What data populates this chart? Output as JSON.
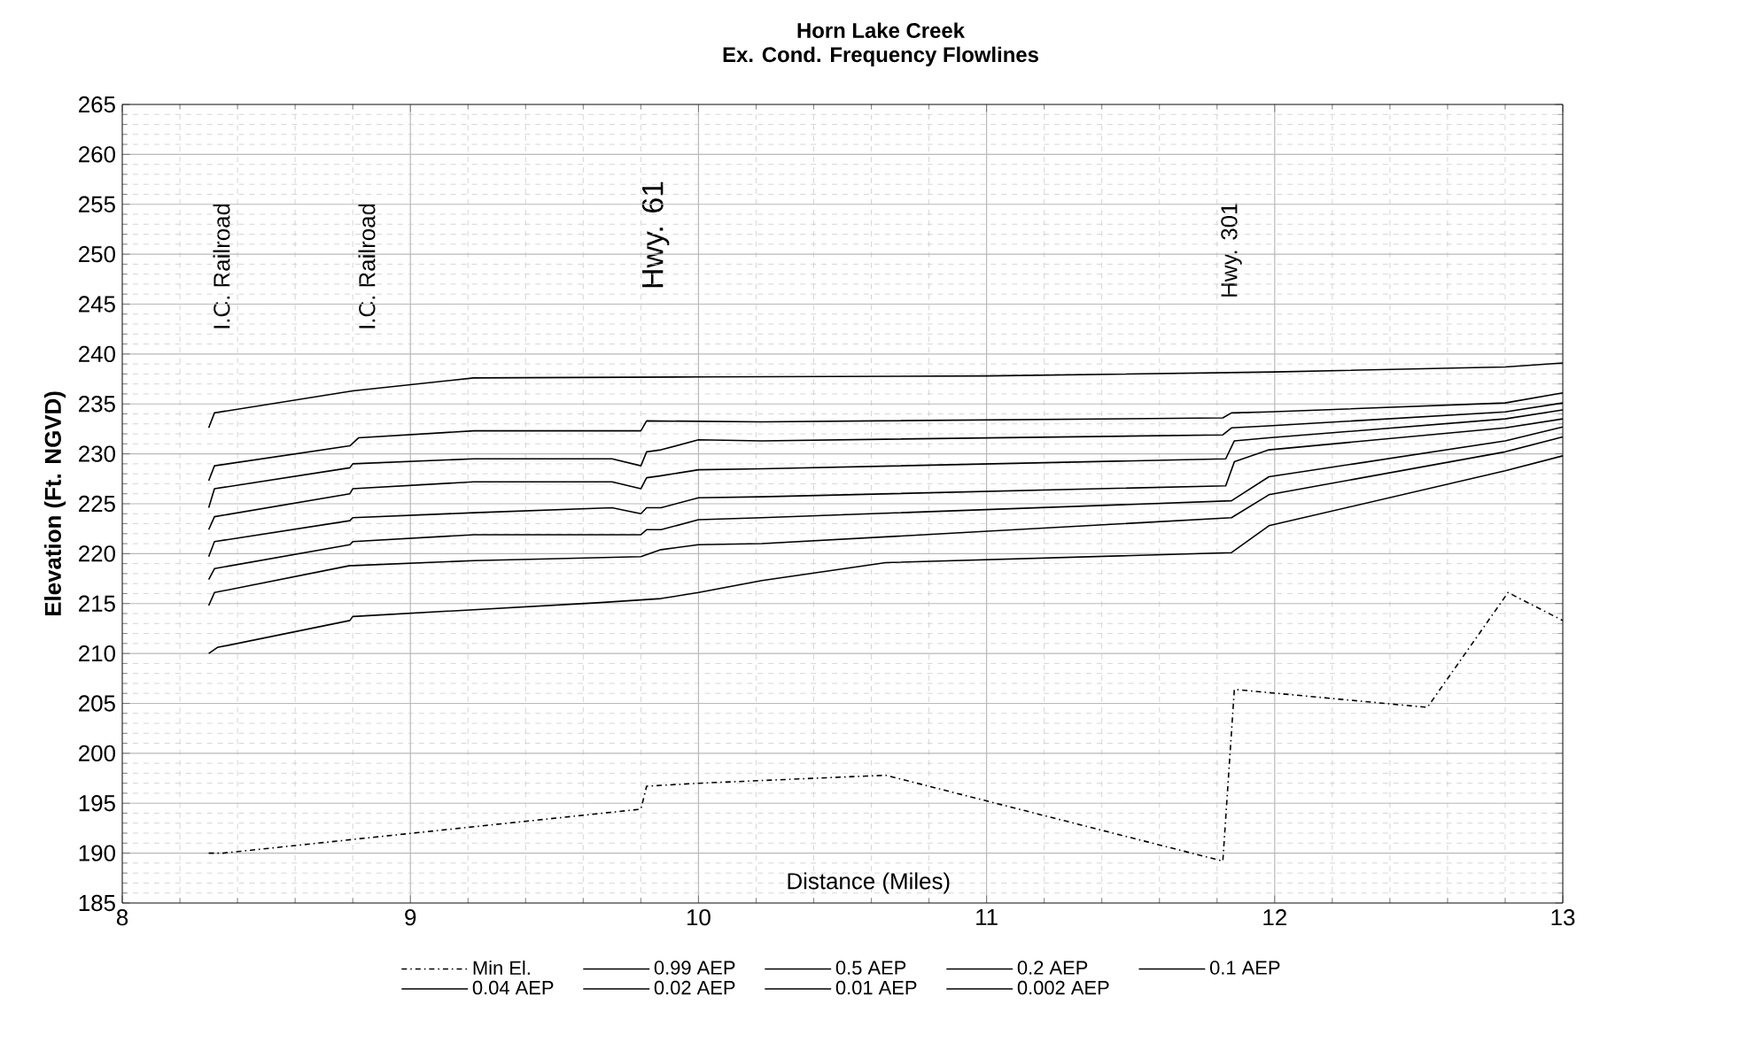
{
  "chart_data": {
    "type": "line",
    "title": "Horn Lake Creek",
    "subtitle": "Ex. Cond. Frequency Flowlines",
    "xlabel": "Distance (Miles)",
    "ylabel": "Elevation (Ft. NGVD)",
    "xlim": [
      8,
      13
    ],
    "xticks": [
      8,
      9,
      10,
      11,
      12,
      13
    ],
    "ylim": [
      185,
      265
    ],
    "yticks": [
      185,
      190,
      195,
      200,
      205,
      210,
      215,
      220,
      225,
      230,
      235,
      240,
      245,
      250,
      255,
      260,
      265
    ],
    "grid": true,
    "legend": "bottom",
    "marker": "none",
    "annotations": [
      "I.C. Railroad",
      "I.C. Railroad",
      "Hwy. 61",
      "Hwy. 301"
    ],
    "series": [
      {
        "name": "Min El.",
        "color": "#000000",
        "line_style": "dashdot",
        "x": [
          8.3,
          8.35,
          9.8,
          9.82,
          10.0,
          10.65,
          11.82,
          11.86,
          12.53,
          12.81,
          13.0
        ],
        "values": [
          190.0,
          190.0,
          194.4,
          196.7,
          197.0,
          197.8,
          189.2,
          206.4,
          204.6,
          216.1,
          213.3
        ]
      },
      {
        "name": "0.99 AEP",
        "color": "#000000",
        "line_style": "solid",
        "x": [
          8.3,
          8.33,
          8.79,
          8.8,
          9.66,
          9.87,
          10.0,
          10.22,
          10.65,
          11.85,
          11.98,
          12.8,
          13.0
        ],
        "values": [
          210.0,
          210.6,
          213.3,
          213.7,
          215.1,
          215.5,
          216.1,
          217.3,
          219.1,
          220.1,
          222.8,
          228.3,
          229.8
        ]
      },
      {
        "name": "0.5 AEP",
        "color": "#000000",
        "line_style": "solid",
        "x": [
          8.3,
          8.32,
          8.79,
          8.8,
          9.22,
          9.8,
          9.87,
          10.0,
          10.22,
          11.85,
          11.98,
          12.8,
          13.0
        ],
        "values": [
          214.8,
          216.1,
          218.8,
          218.8,
          219.3,
          219.7,
          220.4,
          220.9,
          221.0,
          223.6,
          225.9,
          230.2,
          231.7
        ]
      },
      {
        "name": "0.2 AEP",
        "color": "#000000",
        "line_style": "solid",
        "x": [
          8.3,
          8.32,
          8.79,
          8.8,
          9.22,
          9.8,
          9.82,
          9.87,
          10.0,
          10.22,
          11.85,
          11.98,
          12.8,
          13.0
        ],
        "values": [
          217.4,
          218.5,
          220.9,
          221.2,
          221.9,
          221.9,
          222.4,
          222.4,
          223.4,
          223.6,
          225.3,
          227.7,
          231.3,
          232.7
        ]
      },
      {
        "name": "0.1 AEP",
        "color": "#000000",
        "line_style": "solid",
        "x": [
          8.3,
          8.32,
          8.79,
          8.8,
          9.22,
          9.7,
          9.8,
          9.82,
          9.87,
          10.0,
          10.22,
          11.83,
          11.86,
          11.98,
          12.8,
          13.0
        ],
        "values": [
          219.7,
          221.2,
          223.3,
          223.6,
          224.1,
          224.6,
          224.0,
          224.6,
          224.6,
          225.6,
          225.7,
          226.8,
          229.2,
          230.4,
          232.6,
          233.5
        ]
      },
      {
        "name": "0.04 AEP",
        "color": "#000000",
        "line_style": "solid",
        "x": [
          8.3,
          8.32,
          8.79,
          8.8,
          9.22,
          9.7,
          9.8,
          9.82,
          9.87,
          10.0,
          10.22,
          11.83,
          11.86,
          11.98,
          12.8,
          13.0
        ],
        "values": [
          222.4,
          223.7,
          226.0,
          226.5,
          227.2,
          227.2,
          226.5,
          227.6,
          227.8,
          228.4,
          228.5,
          229.5,
          231.3,
          231.6,
          233.5,
          234.4
        ]
      },
      {
        "name": "0.02 AEP",
        "color": "#000000",
        "line_style": "solid",
        "x": [
          8.3,
          8.32,
          8.79,
          8.8,
          9.22,
          9.7,
          9.8,
          9.82,
          9.87,
          10.0,
          10.22,
          11.82,
          11.85,
          11.98,
          12.8,
          13.0
        ],
        "values": [
          224.6,
          226.5,
          228.6,
          229.0,
          229.5,
          229.5,
          228.8,
          230.2,
          230.4,
          231.4,
          231.3,
          231.9,
          232.6,
          232.8,
          234.2,
          235.1
        ]
      },
      {
        "name": "0.01 AEP",
        "color": "#000000",
        "line_style": "solid",
        "x": [
          8.3,
          8.32,
          8.79,
          8.82,
          9.22,
          9.8,
          9.82,
          10.22,
          11.82,
          11.85,
          11.98,
          12.8,
          13.0
        ],
        "values": [
          227.3,
          228.8,
          230.8,
          231.6,
          232.3,
          232.3,
          233.3,
          233.2,
          233.6,
          234.1,
          234.2,
          235.1,
          236.1
        ]
      },
      {
        "name": "0.002 AEP",
        "color": "#000000",
        "line_style": "solid",
        "x": [
          8.3,
          8.32,
          8.8,
          9.22,
          10.0,
          11.0,
          12.0,
          12.8,
          13.0
        ],
        "values": [
          232.6,
          234.1,
          236.3,
          237.6,
          237.7,
          237.8,
          238.2,
          238.7,
          239.1
        ]
      }
    ]
  }
}
